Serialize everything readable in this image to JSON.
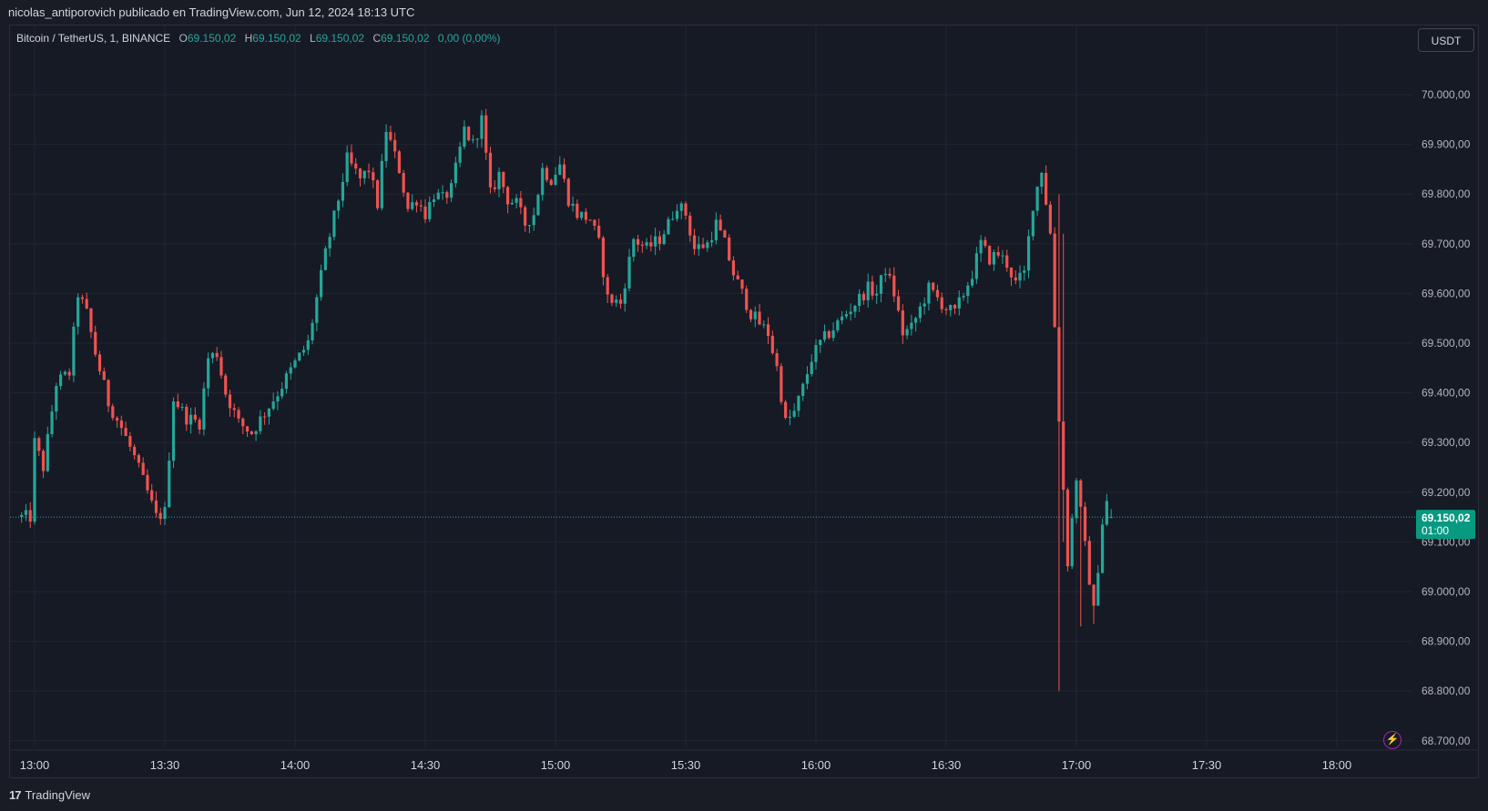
{
  "header": {
    "publisher_text": "nicolas_antiporovich publicado en TradingView.com, Jun 12, 2024 18:13 UTC"
  },
  "legend": {
    "symbol": "Bitcoin / TetherUS, 1, BINANCE",
    "o_label": "O",
    "o_value": "69.150,02",
    "h_label": "H",
    "h_value": "69.150,02",
    "l_label": "L",
    "l_value": "69.150,02",
    "c_label": "C",
    "c_value": "69.150,02",
    "change": "0,00 (0,00%)"
  },
  "currency_button": "USDT",
  "price_tag": {
    "price": "69.150,02",
    "countdown": "01:00"
  },
  "footer": {
    "brand": "TradingView"
  },
  "colors": {
    "up": "#26a69a",
    "down": "#ef5350",
    "grid": "#242733",
    "background": "#161a25",
    "accent": "#9c27b0"
  },
  "icons": {
    "logo": "tradingview-logo-icon",
    "bolt": "lightning-icon"
  },
  "chart_data": {
    "type": "candlestick",
    "x_tick_labels": [
      "13:00",
      "13:30",
      "14:00",
      "14:30",
      "15:00",
      "15:30",
      "16:00",
      "16:30",
      "17:00",
      "17:30",
      "18:00"
    ],
    "y_tick_labels": [
      "70.000,00",
      "69.900,00",
      "69.800,00",
      "69.700,00",
      "69.600,00",
      "69.500,00",
      "69.400,00",
      "69.300,00",
      "69.200,00",
      "69.100,00",
      "69.000,00",
      "68.900,00",
      "68.800,00",
      "68.700,00"
    ],
    "y_ticks": [
      70000,
      69900,
      69800,
      69700,
      69600,
      69500,
      69400,
      69300,
      69200,
      69100,
      69000,
      68900,
      68800,
      68700
    ],
    "ylim": [
      68675,
      70090
    ],
    "last_price": 69150.02,
    "time_range_minutes": [
      -3,
      235
    ],
    "anchor_points": [
      [
        0,
        69300
      ],
      [
        2,
        69250
      ],
      [
        5,
        69420
      ],
      [
        8,
        69440
      ],
      [
        10,
        69600
      ],
      [
        12,
        69560
      ],
      [
        14,
        69480
      ],
      [
        17,
        69380
      ],
      [
        20,
        69330
      ],
      [
        23,
        69270
      ],
      [
        26,
        69200
      ],
      [
        28,
        69150
      ],
      [
        30,
        69160
      ],
      [
        32,
        69390
      ],
      [
        35,
        69350
      ],
      [
        38,
        69340
      ],
      [
        40,
        69470
      ],
      [
        42,
        69480
      ],
      [
        44,
        69400
      ],
      [
        47,
        69340
      ],
      [
        50,
        69320
      ],
      [
        53,
        69360
      ],
      [
        56,
        69400
      ],
      [
        60,
        69460
      ],
      [
        63,
        69500
      ],
      [
        67,
        69680
      ],
      [
        70,
        69790
      ],
      [
        72,
        69870
      ],
      [
        75,
        69830
      ],
      [
        77,
        69850
      ],
      [
        79,
        69780
      ],
      [
        81,
        69930
      ],
      [
        84,
        69850
      ],
      [
        86,
        69770
      ],
      [
        88,
        69790
      ],
      [
        90,
        69760
      ],
      [
        92,
        69800
      ],
      [
        94,
        69790
      ],
      [
        96,
        69810
      ],
      [
        99,
        69930
      ],
      [
        101,
        69900
      ],
      [
        103,
        69950
      ],
      [
        105,
        69800
      ],
      [
        107,
        69840
      ],
      [
        109,
        69790
      ],
      [
        111,
        69780
      ],
      [
        113,
        69740
      ],
      [
        115,
        69760
      ],
      [
        117,
        69850
      ],
      [
        119,
        69830
      ],
      [
        121,
        69860
      ],
      [
        123,
        69790
      ],
      [
        125,
        69760
      ],
      [
        128,
        69750
      ],
      [
        130,
        69700
      ],
      [
        132,
        69590
      ],
      [
        135,
        69580
      ],
      [
        138,
        69710
      ],
      [
        141,
        69690
      ],
      [
        144,
        69710
      ],
      [
        146,
        69740
      ],
      [
        148,
        69780
      ],
      [
        150,
        69760
      ],
      [
        152,
        69690
      ],
      [
        155,
        69700
      ],
      [
        157,
        69740
      ],
      [
        159,
        69700
      ],
      [
        161,
        69640
      ],
      [
        163,
        69600
      ],
      [
        165,
        69560
      ],
      [
        167,
        69540
      ],
      [
        169,
        69520
      ],
      [
        171,
        69450
      ],
      [
        173,
        69340
      ],
      [
        175,
        69360
      ],
      [
        177,
        69410
      ],
      [
        179,
        69470
      ],
      [
        181,
        69500
      ],
      [
        183,
        69520
      ],
      [
        185,
        69540
      ],
      [
        187,
        69560
      ],
      [
        189,
        69580
      ],
      [
        192,
        69610
      ],
      [
        194,
        69600
      ],
      [
        196,
        69650
      ],
      [
        198,
        69600
      ],
      [
        200,
        69520
      ],
      [
        202,
        69530
      ],
      [
        204,
        69570
      ],
      [
        206,
        69610
      ],
      [
        208,
        69590
      ],
      [
        210,
        69570
      ],
      [
        212,
        69560
      ],
      [
        214,
        69600
      ],
      [
        216,
        69640
      ],
      [
        218,
        69700
      ],
      [
        220,
        69670
      ],
      [
        222,
        69680
      ],
      [
        224,
        69660
      ],
      [
        226,
        69620
      ],
      [
        228,
        69640
      ],
      [
        230,
        69780
      ],
      [
        232,
        69850
      ],
      [
        234,
        69720
      ],
      [
        236,
        69350
      ],
      [
        238,
        69060
      ],
      [
        240,
        69230
      ],
      [
        242,
        69090
      ],
      [
        244,
        68960
      ],
      [
        246,
        69140
      ],
      [
        247,
        69180
      ],
      [
        248,
        69150.02
      ]
    ]
  }
}
